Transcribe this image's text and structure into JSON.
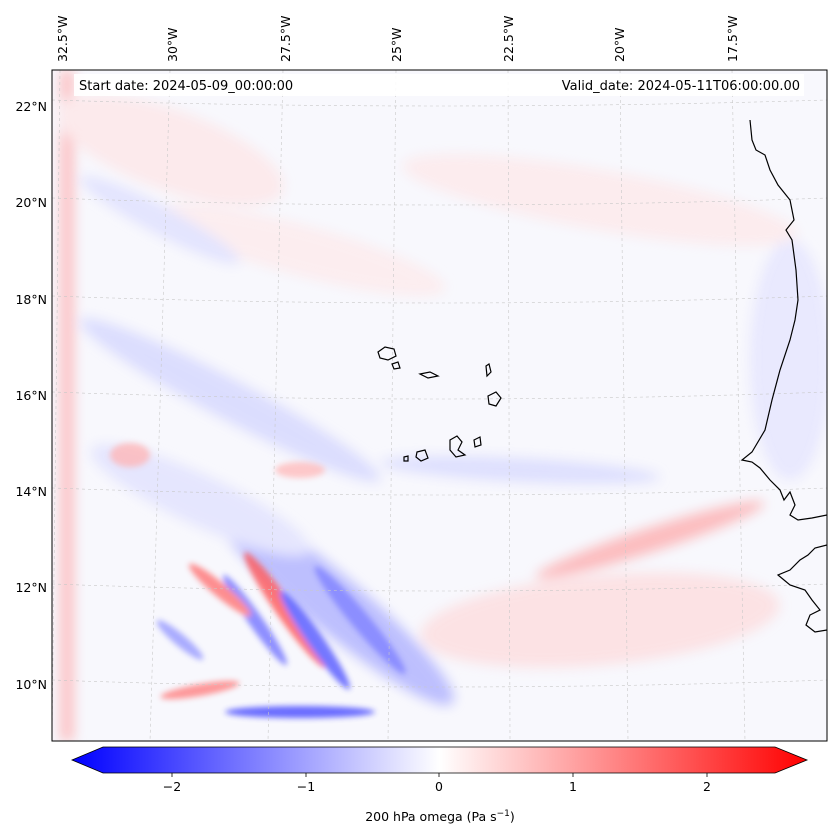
{
  "header": {
    "start_date": "Start date: 2024-05-09_00:00:00",
    "valid_date": "Valid_date: 2024-05-11T06:00:00.00"
  },
  "longitude_labels": [
    "32.5°W",
    "30°W",
    "27.5°W",
    "25°W",
    "22.5°W",
    "20°W",
    "17.5°W"
  ],
  "latitude_labels": [
    "22°N",
    "20°N",
    "18°N",
    "16°N",
    "14°N",
    "12°N",
    "10°N"
  ],
  "colorbar": {
    "ticks": [
      "−2",
      "−1",
      "0",
      "1",
      "2"
    ],
    "label": "200 hPa omega (Pa s",
    "label_exp": "−1",
    "label_end": ")",
    "min_color": "#0000ff",
    "mid_color": "#ffffff",
    "max_color": "#ff0000"
  },
  "chart_data": {
    "type": "heatmap",
    "title": "",
    "variable": "200 hPa omega (Pa s−1)",
    "colormap": "bwr",
    "value_range": [
      -2.7,
      2.7
    ],
    "colorbar_ticks": [
      -2,
      -1,
      0,
      1,
      2
    ],
    "lon_ticks": [
      -32.5,
      -30,
      -27.5,
      -25,
      -22.5,
      -20,
      -17.5
    ],
    "lat_ticks": [
      22,
      20,
      18,
      16,
      14,
      12,
      10
    ],
    "extent": {
      "lon": [
        -33,
        -15.6
      ],
      "lat": [
        8.8,
        22.7
      ]
    },
    "features": [
      "coastline",
      "gridlines"
    ]
  }
}
